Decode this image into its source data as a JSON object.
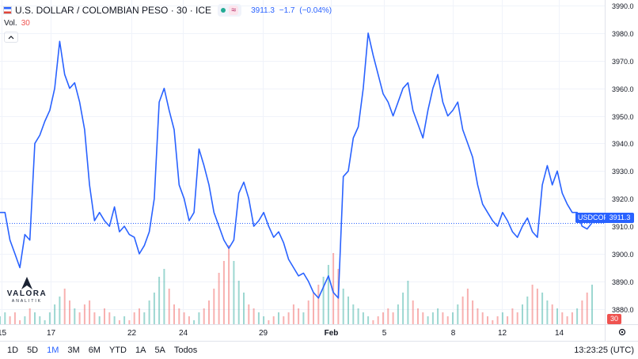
{
  "header": {
    "symbol_title": "U.S. DOLLAR / COLOMBIAN PESO · 30 · ICE",
    "approx_glyph": "≈",
    "price": "3911.3",
    "change": "−1.7",
    "change_pct": "(−0.04%)"
  },
  "volume_legend": {
    "label": "Vol.",
    "value": "30"
  },
  "logo": {
    "word": "VALORA",
    "sub": "ANALITIK"
  },
  "price_tag": {
    "symbol": "USDCOP",
    "value": "3911.3"
  },
  "volume_tag": "30",
  "bottom_bar": {
    "timeframes": [
      "1D",
      "5D",
      "1M",
      "3M",
      "6M",
      "YTD",
      "1A",
      "5A",
      "Todos"
    ],
    "active": "1M",
    "time": "13:23:25 (UTC)"
  },
  "colors": {
    "line": "#2962ff",
    "vol_up": "#26a69a",
    "vol_down": "#ef5350",
    "grid": "#f0f3fa"
  },
  "chart_data": {
    "type": "line",
    "x_tick_labels": [
      "15",
      "17",
      "22",
      "24",
      "29",
      "Feb",
      "5",
      "8",
      "12",
      "14"
    ],
    "y_ticks": [
      3880.0,
      3890.0,
      3900.0,
      3910.0,
      3920.0,
      3930.0,
      3940.0,
      3950.0,
      3960.0,
      3970.0,
      3980.0,
      3990.0
    ],
    "y_tick_labels": [
      "3880.0",
      "3890.0",
      "3900.0",
      "3910.0",
      "3920.0",
      "3930.0",
      "3940.0",
      "3950.0",
      "3960.0",
      "3970.0",
      "3980.0",
      "3990.0"
    ],
    "ylim": [
      3874.5,
      3992.0
    ],
    "grid": true,
    "last_price": 3911.3,
    "series": [
      {
        "name": "USDCOP",
        "values": [
          3915,
          3915,
          3905,
          3900,
          3895,
          3907,
          3905,
          3940,
          3943,
          3948,
          3952,
          3960,
          3977,
          3965,
          3960,
          3962,
          3955,
          3945,
          3925,
          3912,
          3915,
          3912,
          3910,
          3917,
          3908,
          3910,
          3907,
          3906,
          3900,
          3903,
          3908,
          3920,
          3955,
          3960,
          3952,
          3945,
          3925,
          3920,
          3912,
          3915,
          3938,
          3932,
          3925,
          3915,
          3910,
          3905,
          3902,
          3905,
          3922,
          3926,
          3920,
          3910,
          3912,
          3915,
          3910,
          3906,
          3908,
          3904,
          3898,
          3895,
          3892,
          3893,
          3890,
          3886,
          3884,
          3888,
          3892,
          3886,
          3884,
          3928,
          3930,
          3942,
          3946,
          3960,
          3980,
          3972,
          3965,
          3958,
          3955,
          3950,
          3955,
          3960,
          3962,
          3952,
          3947,
          3942,
          3952,
          3960,
          3965,
          3955,
          3950,
          3952,
          3955,
          3945,
          3940,
          3935,
          3925,
          3918,
          3915,
          3912,
          3910,
          3915,
          3912,
          3908,
          3906,
          3910,
          3913,
          3908,
          3906,
          3925,
          3932,
          3925,
          3930,
          3922,
          3918,
          3915,
          3915,
          3910,
          3909,
          3911.3
        ]
      }
    ],
    "volume": [
      2,
      3,
      2,
      3,
      1,
      2,
      4,
      3,
      2,
      1,
      3,
      5,
      7,
      9,
      6,
      4,
      3,
      5,
      6,
      3,
      2,
      4,
      3,
      2,
      1,
      2,
      1,
      3,
      4,
      3,
      6,
      8,
      12,
      14,
      9,
      5,
      4,
      3,
      2,
      1,
      3,
      4,
      6,
      9,
      13,
      16,
      20,
      16,
      11,
      8,
      5,
      4,
      3,
      2,
      1,
      2,
      3,
      2,
      3,
      5,
      4,
      3,
      6,
      8,
      10,
      12,
      15,
      18,
      14,
      9,
      7,
      5,
      4,
      3,
      2,
      1,
      2,
      3,
      4,
      3,
      5,
      8,
      11,
      6,
      4,
      3,
      2,
      3,
      4,
      3,
      2,
      3,
      5,
      7,
      9,
      6,
      4,
      3,
      2,
      1,
      2,
      3,
      2,
      4,
      3,
      5,
      7,
      10,
      9,
      8,
      6,
      5,
      4,
      3,
      2,
      3,
      4,
      6,
      8,
      10
    ]
  }
}
